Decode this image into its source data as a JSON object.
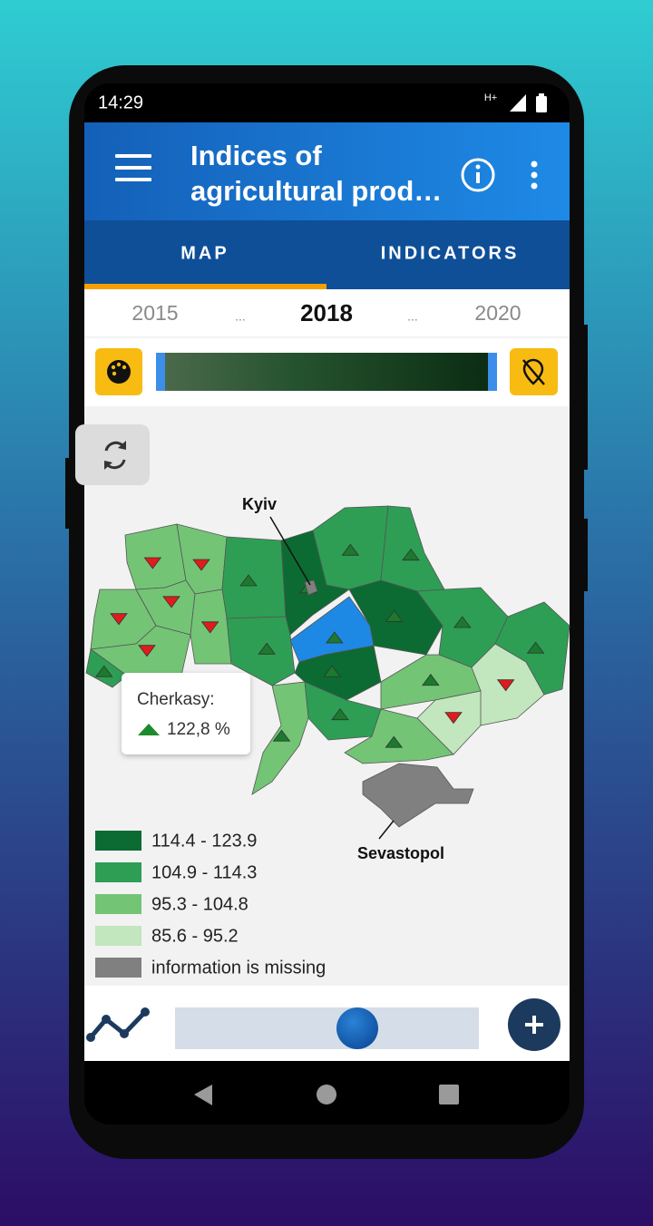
{
  "status_bar": {
    "time": "14:29",
    "network": "H+"
  },
  "app_bar": {
    "title": "Indices of agricultural prod…"
  },
  "tabs": [
    "MAP",
    "INDICATORS"
  ],
  "years": [
    "2015",
    "...",
    "2018",
    "...",
    "2020"
  ],
  "map": {
    "labels": {
      "kyiv": "Kyiv",
      "sevastopol": "Sevastopol"
    },
    "tooltip": {
      "region": "Cherkasy:",
      "value": "122,8 %"
    }
  },
  "legend": [
    {
      "label": "114.4 - 123.9",
      "color": "#0b6b32"
    },
    {
      "label": "104.9 - 114.3",
      "color": "#2e9e55"
    },
    {
      "label": "95.3 - 104.8",
      "color": "#74c476"
    },
    {
      "label": "85.6 - 95.2",
      "color": "#c2e6bd"
    },
    {
      "label": "information is missing",
      "color": "#808080"
    }
  ]
}
